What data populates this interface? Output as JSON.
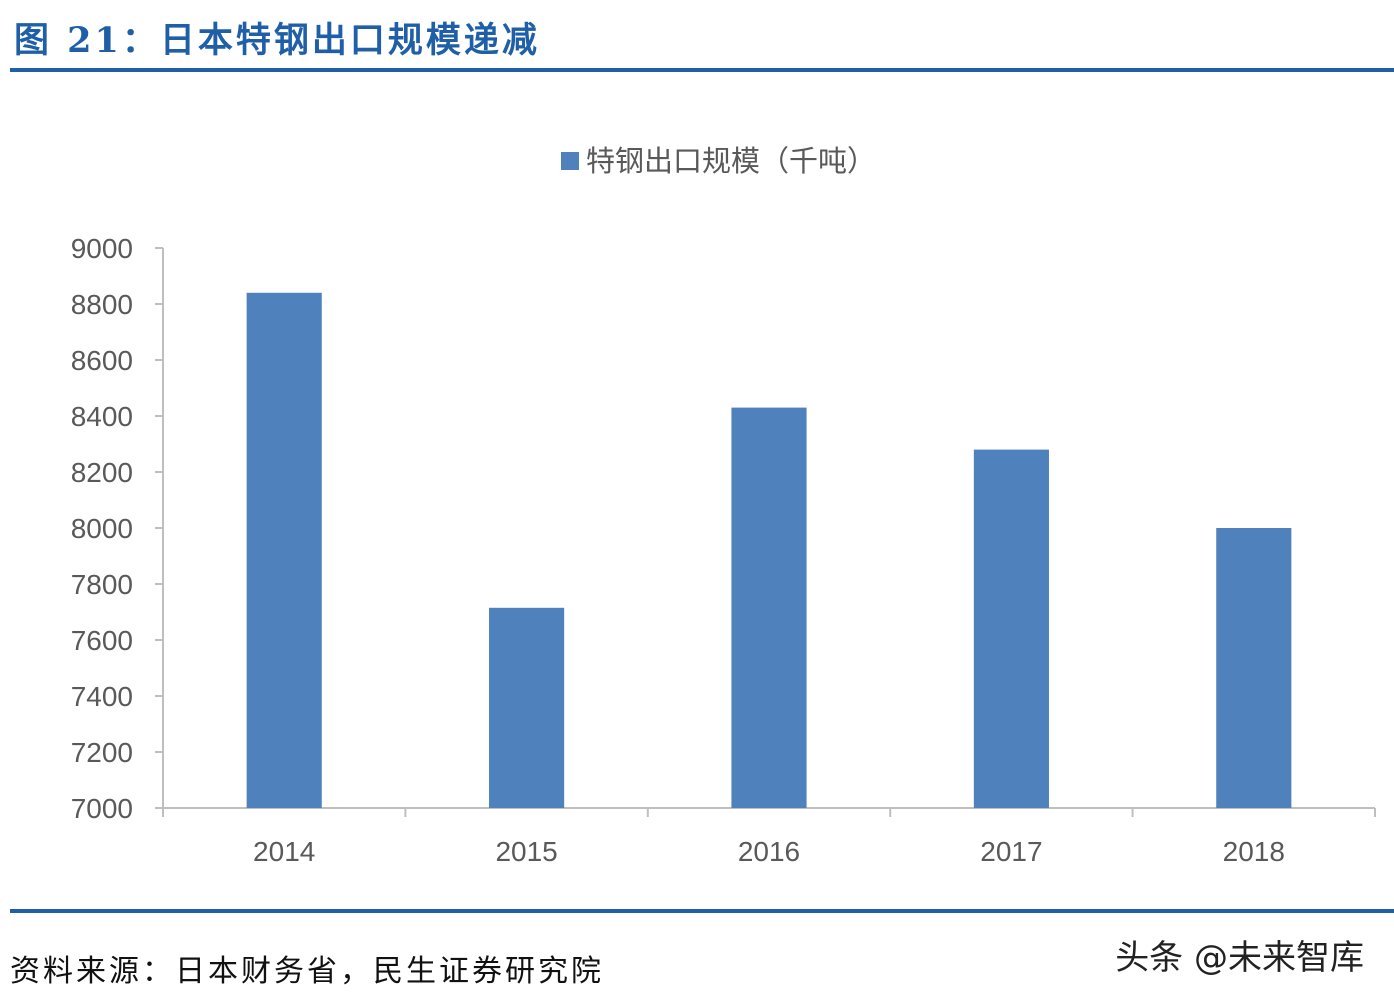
{
  "figure": {
    "title": "图 21：日本特钢出口规模递减",
    "source": "资料来源：日本财务省，民生证券研究院",
    "watermark": "头条 @未来智库"
  },
  "colors": {
    "bar": "#4f81bd",
    "title": "#1f5fa8",
    "axis": "#bfbfbf",
    "tick_text": "#595959"
  },
  "chart_data": {
    "type": "bar",
    "categories": [
      "2014",
      "2015",
      "2016",
      "2017",
      "2018"
    ],
    "series": [
      {
        "name": "特钢出口规模（千吨）",
        "values": [
          8840,
          7715,
          8430,
          8280,
          8000
        ]
      }
    ],
    "ylim": [
      7000,
      9000
    ],
    "yticks": [
      7000,
      7200,
      7400,
      7600,
      7800,
      8000,
      8200,
      8400,
      8600,
      8800,
      9000
    ],
    "legend": "top-center",
    "grid": false
  }
}
